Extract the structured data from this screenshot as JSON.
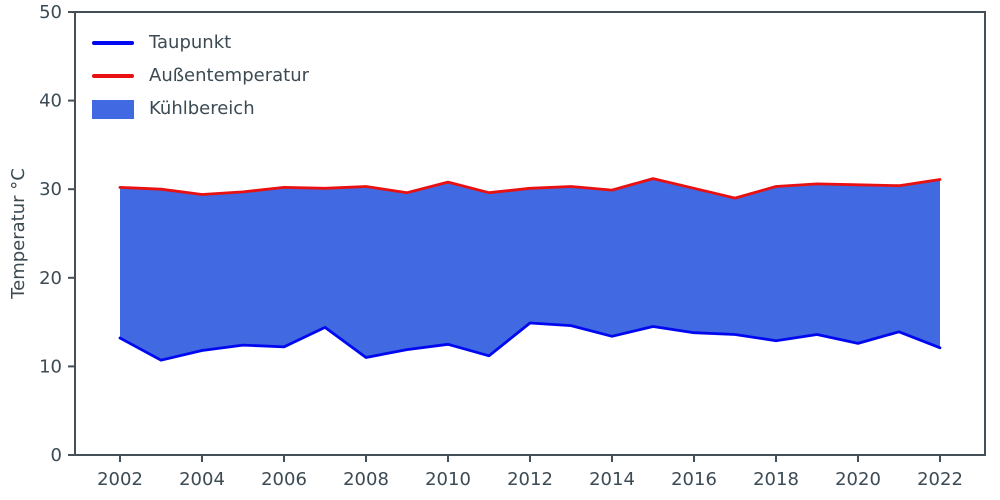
{
  "chart_data": {
    "type": "area",
    "title": "",
    "xlabel": "",
    "ylabel": "Temperatur °C",
    "ylim": [
      0,
      50
    ],
    "xlim": [
      2002,
      2022
    ],
    "grid": false,
    "legend_position": "upper left",
    "x": [
      2002,
      2003,
      2004,
      2005,
      2006,
      2007,
      2008,
      2009,
      2010,
      2011,
      2012,
      2013,
      2014,
      2015,
      2016,
      2017,
      2018,
      2019,
      2020,
      2021,
      2022
    ],
    "xticks": [
      2002,
      2004,
      2006,
      2008,
      2010,
      2012,
      2014,
      2016,
      2018,
      2020,
      2022
    ],
    "yticks": [
      0,
      10,
      20,
      30,
      40,
      50
    ],
    "series": [
      {
        "name": "Taupunkt",
        "color": "#0008f0",
        "values": [
          13.2,
          10.7,
          11.8,
          12.4,
          12.2,
          14.4,
          11.0,
          11.9,
          12.5,
          11.2,
          14.9,
          14.6,
          13.4,
          14.5,
          13.8,
          13.6,
          12.9,
          13.6,
          12.6,
          13.9,
          12.1
        ]
      },
      {
        "name": "Außentemperatur",
        "color": "#e81010",
        "values": [
          30.2,
          30.0,
          29.4,
          29.7,
          30.2,
          30.1,
          30.3,
          29.6,
          30.8,
          29.6,
          30.1,
          30.3,
          29.9,
          31.2,
          30.1,
          29.0,
          30.3,
          30.6,
          30.5,
          30.4,
          31.1
        ]
      }
    ],
    "fill": {
      "name": "Kühlbereich",
      "color": "#4169e1",
      "between": [
        "Taupunkt",
        "Außentemperatur"
      ]
    }
  },
  "style": {
    "background": "#ffffff",
    "text_color": "#3c4a53",
    "spine_color": "#454f57"
  }
}
